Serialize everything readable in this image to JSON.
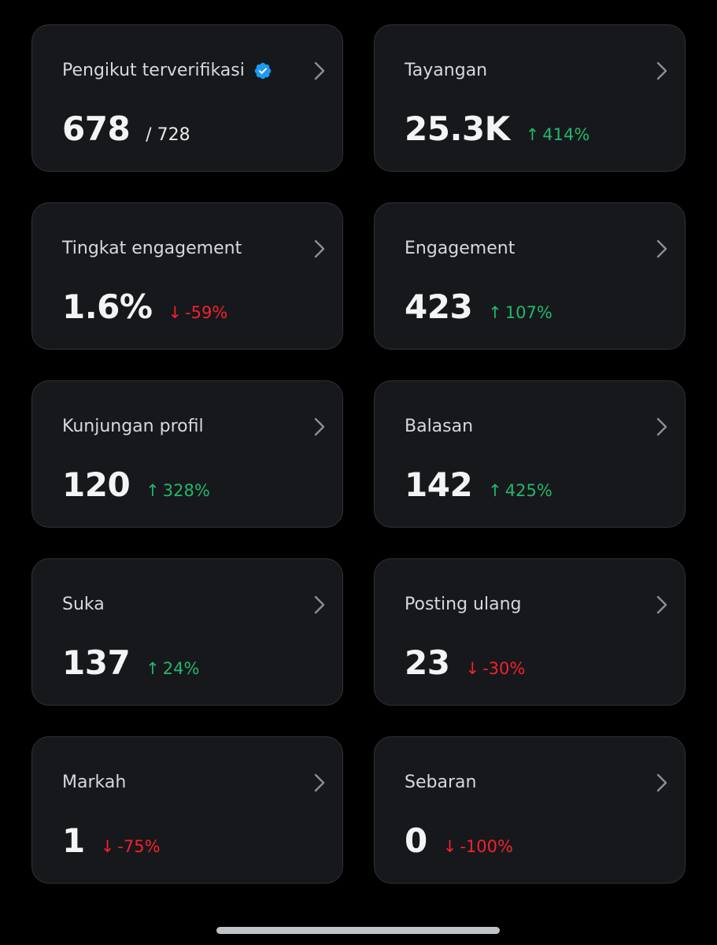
{
  "colors": {
    "background": "#000000",
    "card_background": "#16181c",
    "card_border": "#2f3336",
    "positive": "#20b86c",
    "negative": "#f4212e",
    "verified_badge": "#1d9bf0"
  },
  "cards": [
    {
      "title": "Pengikut terverifikasi",
      "value": "678",
      "total": "/ 728",
      "verified_icon": "verified-badge-icon",
      "icon": "chevron-right-icon"
    },
    {
      "title": "Tayangan",
      "value": "25.3K",
      "delta": "414%",
      "direction": "up",
      "arrow": "↑",
      "icon": "chevron-right-icon"
    },
    {
      "title": "Tingkat engagement",
      "value": "1.6%",
      "delta": "-59%",
      "direction": "down",
      "arrow": "↓",
      "icon": "chevron-right-icon"
    },
    {
      "title": "Engagement",
      "value": "423",
      "delta": "107%",
      "direction": "up",
      "arrow": "↑",
      "icon": "chevron-right-icon"
    },
    {
      "title": "Kunjungan profil",
      "value": "120",
      "delta": "328%",
      "direction": "up",
      "arrow": "↑",
      "icon": "chevron-right-icon"
    },
    {
      "title": "Balasan",
      "value": "142",
      "delta": "425%",
      "direction": "up",
      "arrow": "↑",
      "icon": "chevron-right-icon"
    },
    {
      "title": "Suka",
      "value": "137",
      "delta": "24%",
      "direction": "up",
      "arrow": "↑",
      "icon": "chevron-right-icon"
    },
    {
      "title": "Posting ulang",
      "value": "23",
      "delta": "-30%",
      "direction": "down",
      "arrow": "↓",
      "icon": "chevron-right-icon"
    },
    {
      "title": "Markah",
      "value": "1",
      "delta": "-75%",
      "direction": "down",
      "arrow": "↓",
      "icon": "chevron-right-icon"
    },
    {
      "title": "Sebaran",
      "value": "0",
      "delta": "-100%",
      "direction": "down",
      "arrow": "↓",
      "icon": "chevron-right-icon"
    }
  ]
}
